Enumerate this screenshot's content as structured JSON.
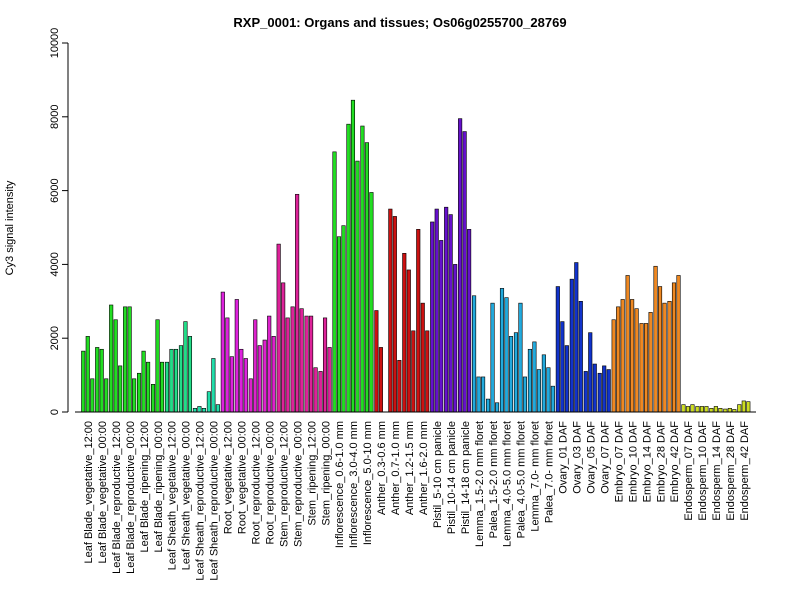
{
  "chart_data": {
    "type": "bar",
    "title": "RXP_0001: Organs and tissues; Os06g0255700_28769",
    "xlabel": "",
    "ylabel": "Cy3 signal intensity",
    "ylim": [
      0,
      10000
    ],
    "yticks": [
      0,
      2000,
      4000,
      6000,
      8000,
      10000
    ],
    "grid": false,
    "tick_labels": [
      "Leaf Blade_vegetative_12:00",
      "Leaf Blade_vegetative_00:00",
      "Leaf Blade_reproductive_12:00",
      "Leaf Blade_reproductive_00:00",
      "Leaf Blade_ripening_12:00",
      "Leaf Blade_ripening_00:00",
      "Leaf Sheath_vegetative_12:00",
      "Leaf Sheath_vegetative_00:00",
      "Leaf Sheath_reproductive_12:00",
      "Leaf Sheath_reproductive_00:00",
      "Root_vegetative_12:00",
      "Root_vegetative_00:00",
      "Root_reproductive_12:00",
      "Root_reproductive_00:00",
      "Stem_reproductive_12:00",
      "Stem_reproductive_00:00",
      "Stem_ripening_12:00",
      "Stem_ripening_00:00",
      "Inflorescence_0.6-1.0 mm",
      "Inflorescence_3.0-4.0 mm",
      "Inflorescence_5.0-10 mm",
      "Anther_0.3-0.6 mm",
      "Anther_0.7-1.0 mm",
      "Anther_1.2-1.5 mm",
      "Anther_1.6-2.0 mm",
      "Pistil_5-10 cm panicle",
      "Pistil_10-14 cm panicle",
      "Pistil_14-18 cm panicle",
      "Lemma_1.5-2.0 mm floret",
      "Palea_1.5-2.0 mm floret",
      "Lemma_4.0-5.0 mm floret",
      "Palea_4.0-5.0 mm floret",
      "Lemma_7.0- mm floret",
      "Palea_7.0- mm floret",
      "Ovary_01 DAF",
      "Ovary_03 DAF",
      "Ovary_05 DAF",
      "Ovary_07 DAF",
      "Embryo_07 DAF",
      "Embryo_10 DAF",
      "Embryo_14 DAF",
      "Embryo_28 DAF",
      "Embryo_42 DAF",
      "Endosperm_07 DAF",
      "Endosperm_10 DAF",
      "Endosperm_14 DAF",
      "Endosperm_28 DAF",
      "Endosperm_42 DAF"
    ],
    "groups": [
      {
        "color": "#22dd22",
        "values": [
          1650,
          2050,
          900
        ]
      },
      {
        "color": "#22dd22",
        "values": [
          1750,
          1700,
          900
        ]
      },
      {
        "color": "#22dd22",
        "values": [
          2900,
          2500,
          1250
        ]
      },
      {
        "color": "#22dd22",
        "values": [
          2850,
          2850,
          900
        ]
      },
      {
        "color": "#22dd22",
        "values": [
          1050,
          1650,
          1350
        ]
      },
      {
        "color": "#22dd22",
        "values": [
          750,
          2500,
          1350
        ]
      },
      {
        "color": "#22dd88",
        "values": [
          1350,
          1700,
          1700
        ]
      },
      {
        "color": "#22dd88",
        "values": [
          1800,
          2450,
          2050
        ]
      },
      {
        "color": "#22ddaa",
        "values": [
          100,
          150,
          100
        ]
      },
      {
        "color": "#22ddaa",
        "values": [
          550,
          1450,
          200
        ]
      },
      {
        "color": "#dd22dd",
        "values": [
          3250,
          2550,
          1500
        ]
      },
      {
        "color": "#dd22dd",
        "values": [
          3050,
          1700,
          1450
        ]
      },
      {
        "color": "#dd22cc",
        "values": [
          900,
          2500,
          1800
        ]
      },
      {
        "color": "#dd22cc",
        "values": [
          1950,
          2600,
          2050
        ]
      },
      {
        "color": "#dd2299",
        "values": [
          4550,
          3500,
          2550
        ]
      },
      {
        "color": "#dd2299",
        "values": [
          2850,
          5900,
          2800
        ]
      },
      {
        "color": "#dd2299",
        "values": [
          2600,
          2600,
          1200
        ]
      },
      {
        "color": "#dd2299",
        "values": [
          1100,
          2550,
          1750
        ]
      },
      {
        "color": "#22dd22",
        "values": [
          7050,
          4750,
          5050
        ]
      },
      {
        "color": "#22dd22",
        "values": [
          7800,
          8450,
          6800
        ]
      },
      {
        "color": "#22dd22",
        "values": [
          7750,
          7300,
          5950
        ]
      },
      {
        "color": "#cc1111",
        "values": [
          2750,
          1750
        ]
      },
      {
        "color": "#cc1111",
        "values": [
          5500,
          5300,
          1400
        ]
      },
      {
        "color": "#cc1111",
        "values": [
          4300,
          3850,
          2200
        ]
      },
      {
        "color": "#cc1111",
        "values": [
          4950,
          2950,
          2200
        ]
      },
      {
        "color": "#6611cc",
        "values": [
          5150,
          5500,
          4650
        ]
      },
      {
        "color": "#6611cc",
        "values": [
          5550,
          5350,
          4000
        ]
      },
      {
        "color": "#6611cc",
        "values": [
          7950,
          7600,
          4950
        ]
      },
      {
        "color": "#22aadd",
        "values": [
          3150,
          950,
          950
        ]
      },
      {
        "color": "#22aadd",
        "values": [
          350,
          2950,
          250
        ]
      },
      {
        "color": "#22aadd",
        "values": [
          3350,
          3100,
          2050
        ]
      },
      {
        "color": "#22aadd",
        "values": [
          2150,
          2950,
          950
        ]
      },
      {
        "color": "#22aadd",
        "values": [
          1700,
          1900,
          1150
        ]
      },
      {
        "color": "#22aadd",
        "values": [
          1550,
          1200,
          700
        ]
      },
      {
        "color": "#1133cc",
        "values": [
          3400,
          2450,
          1800
        ]
      },
      {
        "color": "#1133cc",
        "values": [
          3600,
          4050,
          3000
        ]
      },
      {
        "color": "#1133cc",
        "values": [
          1100,
          2150,
          1300
        ]
      },
      {
        "color": "#1133cc",
        "values": [
          1050,
          1250,
          1150
        ]
      },
      {
        "color": "#ee8822",
        "values": [
          2500,
          2850,
          3050
        ]
      },
      {
        "color": "#ee8822",
        "values": [
          3700,
          3050,
          2800
        ]
      },
      {
        "color": "#ee8822",
        "values": [
          2400,
          2400,
          2700
        ]
      },
      {
        "color": "#ee8822",
        "values": [
          3950,
          3400,
          2950
        ]
      },
      {
        "color": "#ee8822",
        "values": [
          3000,
          3500,
          3700
        ]
      },
      {
        "color": "#ccdd22",
        "values": [
          200,
          150,
          200
        ]
      },
      {
        "color": "#ccdd22",
        "values": [
          150,
          150,
          150
        ]
      },
      {
        "color": "#ccdd22",
        "values": [
          100,
          150,
          100
        ]
      },
      {
        "color": "#ccdd22",
        "values": [
          80,
          100,
          70
        ]
      },
      {
        "color": "#ccdd22",
        "values": [
          200,
          300,
          280
        ]
      }
    ]
  }
}
